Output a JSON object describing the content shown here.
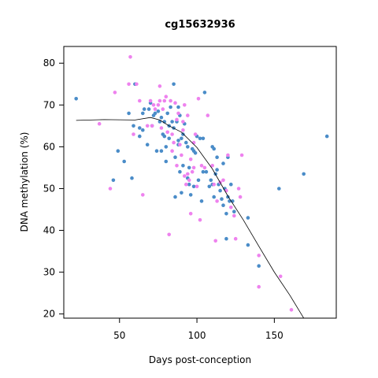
{
  "chart_data": {
    "type": "scatter",
    "title": "cg15632936",
    "xlabel": "Days post-conception",
    "ylabel": "DNA methylation (%)",
    "xlim": [
      14,
      190
    ],
    "ylim": [
      19,
      84
    ],
    "xticks": [
      50,
      100,
      150
    ],
    "yticks": [
      20,
      30,
      40,
      50,
      60,
      70,
      80
    ],
    "legend": "none",
    "grid": false,
    "series": [
      {
        "color": "#4a8cc8",
        "points": [
          [
            22,
            71.5
          ],
          [
            46,
            52
          ],
          [
            49,
            59
          ],
          [
            53,
            56.5
          ],
          [
            56,
            68
          ],
          [
            58,
            52.5
          ],
          [
            59,
            65
          ],
          [
            60,
            75
          ],
          [
            63,
            64.5
          ],
          [
            63,
            62.5
          ],
          [
            65,
            64
          ],
          [
            65,
            68
          ],
          [
            66,
            69
          ],
          [
            68,
            60.5
          ],
          [
            69,
            69
          ],
          [
            70,
            70.5
          ],
          [
            71,
            65
          ],
          [
            72,
            67.5
          ],
          [
            73,
            68
          ],
          [
            74,
            59
          ],
          [
            75,
            68.5
          ],
          [
            76,
            66
          ],
          [
            77,
            59
          ],
          [
            77,
            67
          ],
          [
            78,
            63
          ],
          [
            79,
            66
          ],
          [
            79,
            62.5
          ],
          [
            80,
            56.5
          ],
          [
            80,
            60
          ],
          [
            81,
            68
          ],
          [
            82,
            65
          ],
          [
            82,
            62
          ],
          [
            83,
            69.5
          ],
          [
            84,
            66
          ],
          [
            85,
            75
          ],
          [
            85,
            64.5
          ],
          [
            86,
            57.5
          ],
          [
            86,
            48
          ],
          [
            87,
            66
          ],
          [
            88,
            69.5
          ],
          [
            88,
            61.5
          ],
          [
            88,
            60.5
          ],
          [
            89,
            54
          ],
          [
            89,
            67.5
          ],
          [
            90,
            62
          ],
          [
            90,
            49
          ],
          [
            91,
            55.5
          ],
          [
            91,
            63
          ],
          [
            92,
            65.5
          ],
          [
            93,
            61
          ],
          [
            94,
            52.5
          ],
          [
            94,
            60
          ],
          [
            95,
            51
          ],
          [
            95,
            55
          ],
          [
            96,
            48.5
          ],
          [
            97,
            59.5
          ],
          [
            98,
            59
          ],
          [
            98,
            50.5
          ],
          [
            99,
            58.5
          ],
          [
            100,
            62.5
          ],
          [
            101,
            52
          ],
          [
            102,
            62
          ],
          [
            103,
            47
          ],
          [
            104,
            54
          ],
          [
            104,
            62
          ],
          [
            105,
            73
          ],
          [
            106,
            54
          ],
          [
            108,
            50.5
          ],
          [
            109,
            52
          ],
          [
            110,
            60
          ],
          [
            110,
            51
          ],
          [
            111,
            59.5
          ],
          [
            111,
            48
          ],
          [
            112,
            53.5
          ],
          [
            113,
            57.5
          ],
          [
            113,
            54.5
          ],
          [
            114,
            51
          ],
          [
            115,
            49.5
          ],
          [
            116,
            47.5
          ],
          [
            117,
            56
          ],
          [
            117,
            46
          ],
          [
            118,
            50
          ],
          [
            119,
            44
          ],
          [
            119,
            38
          ],
          [
            120,
            57.5
          ],
          [
            120,
            48
          ],
          [
            121,
            47
          ],
          [
            122,
            51
          ],
          [
            123,
            47
          ],
          [
            124,
            44.5
          ],
          [
            133,
            43
          ],
          [
            133,
            36.5
          ],
          [
            140,
            31.5
          ],
          [
            153,
            50
          ],
          [
            169,
            53.5
          ],
          [
            184,
            62.5
          ]
        ]
      },
      {
        "color": "#ee82ee",
        "points": [
          [
            37,
            65.5
          ],
          [
            44,
            50
          ],
          [
            47,
            73
          ],
          [
            56,
            75
          ],
          [
            57,
            81.5
          ],
          [
            59,
            63
          ],
          [
            61,
            75
          ],
          [
            63,
            71
          ],
          [
            65,
            48.5
          ],
          [
            68,
            65
          ],
          [
            70,
            71
          ],
          [
            71,
            65
          ],
          [
            72,
            70
          ],
          [
            73,
            69
          ],
          [
            75,
            70
          ],
          [
            76,
            71
          ],
          [
            76,
            74.5
          ],
          [
            77,
            64.5
          ],
          [
            78,
            69
          ],
          [
            79,
            71
          ],
          [
            80,
            72
          ],
          [
            81,
            63.5
          ],
          [
            82,
            39
          ],
          [
            83,
            71
          ],
          [
            84,
            63
          ],
          [
            84,
            59
          ],
          [
            85,
            61
          ],
          [
            86,
            70.5
          ],
          [
            87,
            55.5
          ],
          [
            87,
            66.5
          ],
          [
            88,
            68
          ],
          [
            89,
            60.5
          ],
          [
            90,
            58
          ],
          [
            91,
            64
          ],
          [
            91,
            66
          ],
          [
            92,
            70
          ],
          [
            92,
            53
          ],
          [
            93,
            51
          ],
          [
            94,
            67.5
          ],
          [
            94,
            53.5
          ],
          [
            95,
            52
          ],
          [
            96,
            57
          ],
          [
            96,
            44
          ],
          [
            97,
            54
          ],
          [
            98,
            61
          ],
          [
            98,
            55
          ],
          [
            99,
            63
          ],
          [
            100,
            50.5
          ],
          [
            101,
            71.5
          ],
          [
            102,
            42.5
          ],
          [
            103,
            55.5
          ],
          [
            105,
            55
          ],
          [
            107,
            67.5
          ],
          [
            110,
            55.5
          ],
          [
            111,
            51
          ],
          [
            112,
            37.5
          ],
          [
            113,
            47
          ],
          [
            115,
            51.5
          ],
          [
            117,
            52
          ],
          [
            119,
            49.5
          ],
          [
            120,
            58
          ],
          [
            122,
            45.5
          ],
          [
            124,
            43.5
          ],
          [
            125,
            38
          ],
          [
            127,
            50
          ],
          [
            128,
            48
          ],
          [
            129,
            58
          ],
          [
            140,
            34
          ],
          [
            140,
            26.5
          ],
          [
            154,
            29
          ],
          [
            161,
            21
          ]
        ]
      },
      {
        "name": "trend",
        "color": "#000000",
        "line": [
          [
            22,
            66.3
          ],
          [
            40,
            66.5
          ],
          [
            60,
            66.4
          ],
          [
            70,
            67.0
          ],
          [
            76,
            66.4
          ],
          [
            82,
            65.0
          ],
          [
            90,
            63.5
          ],
          [
            100,
            59.8
          ],
          [
            110,
            54.7
          ],
          [
            120,
            48.2
          ],
          [
            130,
            42.5
          ],
          [
            140,
            36.2
          ],
          [
            150,
            30.0
          ],
          [
            160,
            24.5
          ],
          [
            169,
            19
          ]
        ]
      }
    ]
  }
}
